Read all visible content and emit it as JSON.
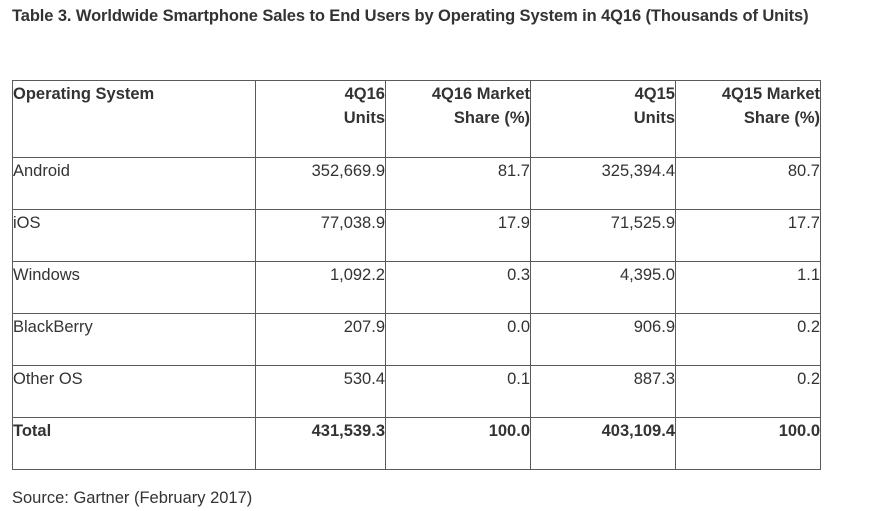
{
  "title": "Table 3. Worldwide Smartphone Sales to End Users by Operating System in 4Q16 (Thousands of Units)",
  "table": {
    "headers": [
      {
        "line1": "Operating System",
        "line2": ""
      },
      {
        "line1": "4Q16",
        "line2": "Units"
      },
      {
        "line1": "4Q16 Market",
        "line2": "Share (%)"
      },
      {
        "line1": "4Q15",
        "line2": "Units"
      },
      {
        "line1": "4Q15 Market",
        "line2": "Share (%)"
      }
    ],
    "rows": [
      {
        "os": "Android",
        "q416_units": "352,669.9",
        "q416_share": "81.7",
        "q415_units": "325,394.4",
        "q415_share": "80.7"
      },
      {
        "os": "iOS",
        "q416_units": "77,038.9",
        "q416_share": "17.9",
        "q415_units": "71,525.9",
        "q415_share": "17.7"
      },
      {
        "os": "Windows",
        "q416_units": "1,092.2",
        "q416_share": "0.3",
        "q415_units": "4,395.0",
        "q415_share": "1.1"
      },
      {
        "os": "BlackBerry",
        "q416_units": "207.9",
        "q416_share": "0.0",
        "q415_units": "906.9",
        "q415_share": "0.2"
      },
      {
        "os": "Other OS",
        "q416_units": "530.4",
        "q416_share": "0.1",
        "q415_units": "887.3",
        "q415_share": "0.2"
      }
    ],
    "total": {
      "os": "Total",
      "q416_units": "431,539.3",
      "q416_share": "100.0",
      "q415_units": "403,109.4",
      "q415_share": "100.0"
    }
  },
  "source": "Source: Gartner (February 2017)"
}
